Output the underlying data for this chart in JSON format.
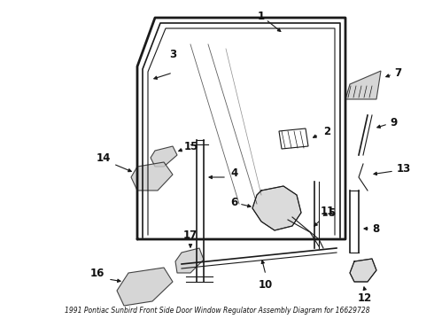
{
  "title": "1991 Pontiac Sunbird Front Side Door Window Regulator Assembly Diagram for 16629728",
  "bg_color": "#ffffff",
  "fig_width": 4.9,
  "fig_height": 3.6,
  "dpi": 100,
  "line_color": "#1a1a1a",
  "text_color": "#111111",
  "font_size_labels": 8.5,
  "font_size_title": 5.5
}
